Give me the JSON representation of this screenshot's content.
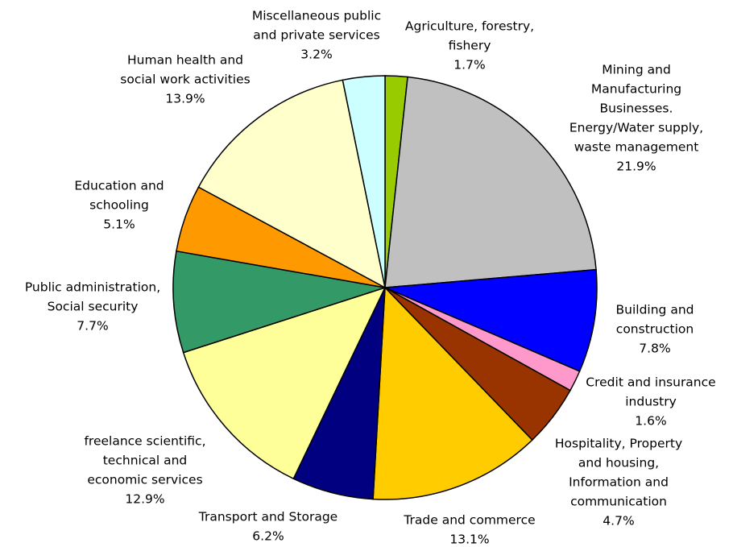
{
  "chart_data": {
    "type": "pie",
    "categories": [
      [
        "Agriculture, forestry,",
        "fishery"
      ],
      [
        "Mining and",
        "Manufacturing",
        "Businesses.",
        "Energy/Water supply,",
        "waste management"
      ],
      [
        "Building and",
        "construction"
      ],
      [
        "Credit and insurance",
        "industry"
      ],
      [
        "Hospitality, Property",
        "and housing,",
        "Information and",
        "communication"
      ],
      [
        "Trade and commerce"
      ],
      [
        "Transport and Storage"
      ],
      [
        "freelance scientific,",
        "technical and",
        "economic services"
      ],
      [
        "Public administration,",
        "Social security"
      ],
      [
        "Education and",
        "schooling"
      ],
      [
        "Human health and",
        "social work activities"
      ],
      [
        "Miscellaneous public",
        "and private services"
      ]
    ],
    "values": [
      1.7,
      21.9,
      7.8,
      1.6,
      4.7,
      13.1,
      6.2,
      12.9,
      7.7,
      5.1,
      13.9,
      3.2
    ],
    "value_labels": [
      "1.7%",
      "21.9%",
      "7.8%",
      "1.6%",
      "4.7%",
      "13.1%",
      "6.2%",
      "12.9%",
      "7.7%",
      "5.1%",
      "13.9%",
      "3.2%"
    ],
    "colors": [
      "#99cc00",
      "#c0c0c0",
      "#0000ff",
      "#ff99cc",
      "#993300",
      "#ffcc00",
      "#000080",
      "#ffff99",
      "#339966",
      "#ff9900",
      "#ffffcc",
      "#ccffff"
    ]
  }
}
